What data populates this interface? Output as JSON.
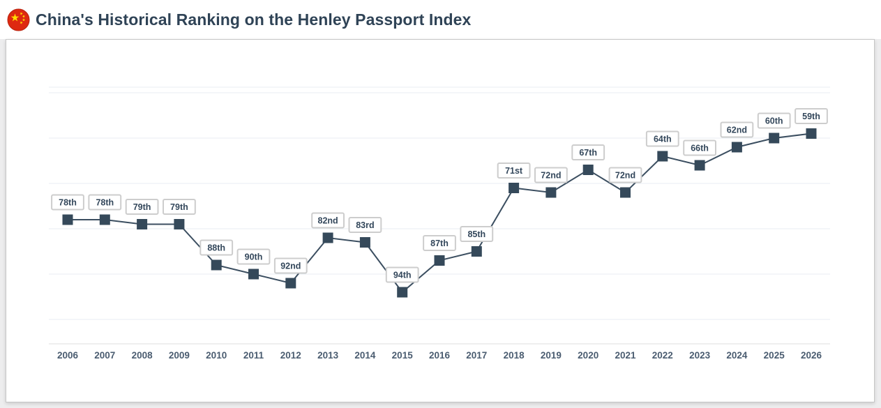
{
  "header": {
    "title": "China's Historical Ranking on the Henley Passport Index",
    "flag_icon": "china-flag-icon",
    "flag_colors": {
      "red": "#de2910",
      "yellow": "#ffde00"
    }
  },
  "chart_data": {
    "type": "line",
    "title": "China's Historical Ranking on the Henley Passport Index",
    "xlabel": "",
    "ylabel": "",
    "categories": [
      "2006",
      "2007",
      "2008",
      "2009",
      "2010",
      "2011",
      "2012",
      "2013",
      "2014",
      "2015",
      "2016",
      "2017",
      "2018",
      "2019",
      "2020",
      "2021",
      "2022",
      "2023",
      "2024",
      "2025",
      "2026"
    ],
    "values": [
      78,
      78,
      79,
      79,
      88,
      90,
      92,
      82,
      83,
      94,
      87,
      85,
      71,
      72,
      67,
      72,
      64,
      66,
      62,
      60,
      59
    ],
    "point_labels": [
      "78th",
      "78th",
      "79th",
      "79th",
      "88th",
      "90th",
      "92nd",
      "82nd",
      "83rd",
      "94th",
      "87th",
      "85th",
      "71st",
      "72nd",
      "67th",
      "72nd",
      "64th",
      "66th",
      "62nd",
      "60th",
      "59th"
    ],
    "y_axis": {
      "inverted": true,
      "gridline_ranks": [
        50,
        60,
        70,
        80,
        90,
        100
      ],
      "tick_labels_visible": false
    },
    "legend": "none",
    "marker_shape": "square",
    "grid": true,
    "colors": {
      "line": "#3b4e60",
      "marker": "#35495a",
      "point_label_text": "#33475b",
      "point_label_border": "#cdcdcd",
      "point_label_bg": "#ffffff",
      "gridline": "#e8eef3",
      "axis_line": "#dcdcdc",
      "year_label": "#4a5c70"
    }
  }
}
